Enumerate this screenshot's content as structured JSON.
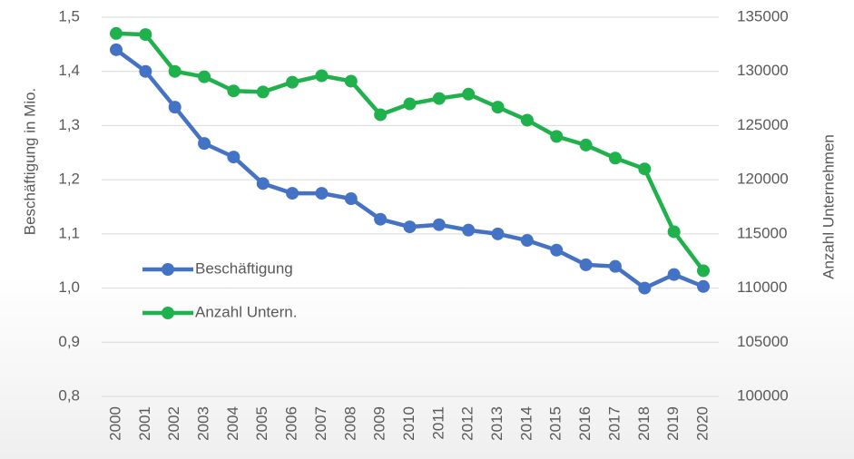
{
  "chart_data": {
    "type": "line",
    "categories": [
      "2000",
      "2001",
      "2002",
      "2003",
      "2004",
      "2005",
      "2006",
      "2007",
      "2008",
      "2009",
      "2010",
      "2011",
      "2012",
      "2013",
      "2014",
      "2015",
      "2016",
      "2017",
      "2018",
      "2019",
      "2020"
    ],
    "ylabel": "Beschäftigung in Mio.",
    "y2label": "Anzahl Unternehmen",
    "ylim": [
      0.8,
      1.5
    ],
    "yticks": [
      {
        "value": 0.8,
        "label": "0,8"
      },
      {
        "value": 0.9,
        "label": "0,9"
      },
      {
        "value": 1.0,
        "label": "1,0"
      },
      {
        "value": 1.1,
        "label": "1,1"
      },
      {
        "value": 1.2,
        "label": "1,2"
      },
      {
        "value": 1.3,
        "label": "1,3"
      },
      {
        "value": 1.4,
        "label": "1,4"
      },
      {
        "value": 1.5,
        "label": "1,5"
      }
    ],
    "y2lim": [
      100000,
      135000
    ],
    "y2ticks": [
      100000,
      105000,
      110000,
      115000,
      120000,
      125000,
      130000,
      135000
    ],
    "grid": true,
    "legend": "left",
    "series": [
      {
        "name": "Beschäftigung",
        "color": "#4472c4",
        "values": [
          1.44,
          1.4,
          1.334,
          1.267,
          1.242,
          1.193,
          1.175,
          1.175,
          1.165,
          1.127,
          1.113,
          1.117,
          1.107,
          1.1,
          1.088,
          1.07,
          1.043,
          1.04,
          1.0,
          1.025,
          1.003
        ]
      },
      {
        "name": "Anzahl Untern.",
        "color": "#1fb14b",
        "axis": "y2",
        "values": [
          133500,
          133400,
          130000,
          129500,
          128200,
          128100,
          129000,
          129600,
          129100,
          126000,
          127000,
          127500,
          127900,
          126700,
          125500,
          124000,
          123200,
          122000,
          121000,
          115200,
          111600
        ]
      }
    ]
  }
}
